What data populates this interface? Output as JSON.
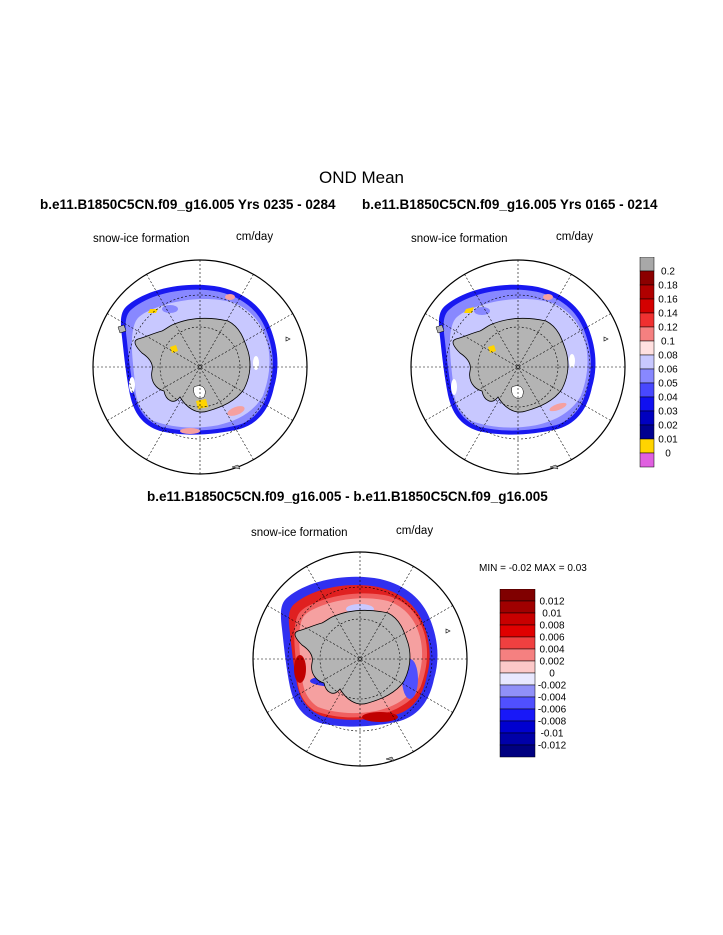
{
  "page": {
    "title": "OND Mean",
    "left_title": "b.e11.B1850C5CN.f09_g16.005  Yrs 0235 - 0284",
    "right_title": "b.e11.B1850C5CN.f09_g16.005  Yrs 0165 - 0214",
    "diff_title": "b.e11.B1850C5CN.f09_g16.005 - b.e11.B1850C5CN.f09_g16.005"
  },
  "panels": {
    "left": {
      "variable": "snow-ice formation",
      "units": "cm/day"
    },
    "right": {
      "variable": "snow-ice formation",
      "units": "cm/day"
    },
    "diff": {
      "variable": "snow-ice formation",
      "units": "cm/day",
      "minmax": "MIN =  -0.02 MAX =   0.03"
    }
  },
  "colorbars": {
    "main": {
      "labels": [
        "0.2",
        "0.18",
        "0.16",
        "0.14",
        "0.12",
        "0.1",
        "0.08",
        "0.06",
        "0.05",
        "0.04",
        "0.03",
        "0.02",
        "0.01",
        "0"
      ],
      "colors": [
        "#a8a8a8",
        "#8b0000",
        "#b00000",
        "#d40000",
        "#f03030",
        "#f58080",
        "#ffe0e0",
        "#c8c8ff",
        "#8888ff",
        "#4848ff",
        "#1010f0",
        "#0000c0",
        "#000090",
        "#ffd400",
        "#e060e0"
      ]
    },
    "diff": {
      "labels": [
        "0.012",
        "0.01",
        "0.008",
        "0.006",
        "0.004",
        "0.002",
        "0",
        "-0.002",
        "-0.004",
        "-0.006",
        "-0.008",
        "-0.01",
        "-0.012"
      ],
      "colors": [
        "#800000",
        "#a00000",
        "#c80000",
        "#e00000",
        "#f04040",
        "#f58080",
        "#fcc8c8",
        "#e8e8ff",
        "#9090f8",
        "#5050ff",
        "#1818f8",
        "#0000d0",
        "#0000a8",
        "#000080"
      ]
    }
  },
  "map_colors": {
    "land": "#b4b4b4",
    "ocean": "#ffffff",
    "ice_light": "#c8c8ff",
    "ice_mid": "#8888ff",
    "ice_dark": "#1818f0",
    "red_hi": "#e02020",
    "pink": "#f5a0a0",
    "yellow": "#ffd400"
  }
}
